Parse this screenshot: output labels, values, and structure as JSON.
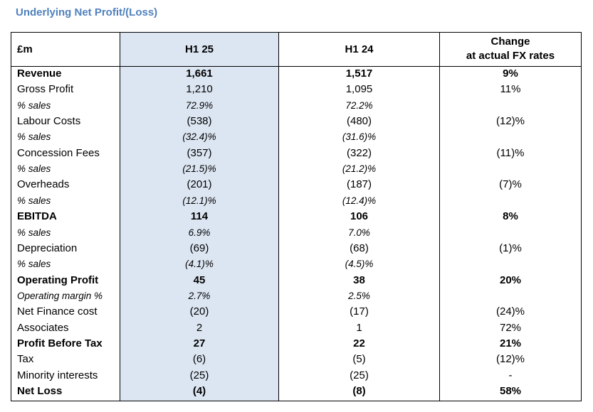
{
  "title": "Underlying Net Profit/(Loss)",
  "table": {
    "header": [
      "£m",
      "H1 25",
      "H1 24",
      [
        "Change",
        "at actual FX rates"
      ]
    ],
    "rows": [
      {
        "cells": [
          "Revenue",
          "1,661",
          "1,517",
          "9%"
        ],
        "style": "bold"
      },
      {
        "cells": [
          "Gross Profit",
          "1,210",
          "1,095",
          "11%"
        ],
        "style": "normal"
      },
      {
        "cells": [
          "% sales",
          "72.9%",
          "72.2%",
          null
        ],
        "style": "italic"
      },
      {
        "cells": [
          "Labour Costs",
          "(538)",
          "(480)",
          "(12)%"
        ],
        "style": "normal"
      },
      {
        "cells": [
          "% sales",
          "(32.4)%",
          "(31.6)%",
          null
        ],
        "style": "italic"
      },
      {
        "cells": [
          "Concession Fees",
          "(357)",
          "(322)",
          "(11)%"
        ],
        "style": "normal"
      },
      {
        "cells": [
          "% sales",
          "(21.5)%",
          "(21.2)%",
          null
        ],
        "style": "italic"
      },
      {
        "cells": [
          "Overheads",
          "(201)",
          "(187)",
          "(7)%"
        ],
        "style": "normal"
      },
      {
        "cells": [
          "% sales",
          "(12.1)%",
          "(12.4)%",
          null
        ],
        "style": "italic"
      },
      {
        "cells": [
          "EBITDA",
          "114",
          "106",
          "8%"
        ],
        "style": "bold"
      },
      {
        "cells": [
          "% sales",
          "6.9%",
          "7.0%",
          null
        ],
        "style": "italic"
      },
      {
        "cells": [
          "Depreciation",
          "(69)",
          "(68)",
          "(1)%"
        ],
        "style": "normal"
      },
      {
        "cells": [
          "% sales",
          "(4.1)%",
          "(4.5)%",
          null
        ],
        "style": "italic"
      },
      {
        "cells": [
          "Operating Profit",
          "45",
          "38",
          "20%"
        ],
        "style": "bold"
      },
      {
        "cells": [
          "Operating margin %",
          "2.7%",
          "2.5%",
          null
        ],
        "style": "italic"
      },
      {
        "cells": [
          "Net Finance cost",
          "(20)",
          "(17)",
          "(24)%"
        ],
        "style": "normal"
      },
      {
        "cells": [
          "Associates",
          "2",
          "1",
          "72%"
        ],
        "style": "normal"
      },
      {
        "cells": [
          "Profit Before Tax",
          "27",
          "22",
          "21%"
        ],
        "style": "bold"
      },
      {
        "cells": [
          "Tax",
          "(6)",
          "(5)",
          "(12)%"
        ],
        "style": "normal"
      },
      {
        "cells": [
          "Minority interests",
          "(25)",
          "(25)",
          "-"
        ],
        "style": "normal"
      },
      {
        "cells": [
          "Net Loss",
          "(4)",
          "(8)",
          "58%"
        ],
        "style": "bold"
      }
    ]
  }
}
